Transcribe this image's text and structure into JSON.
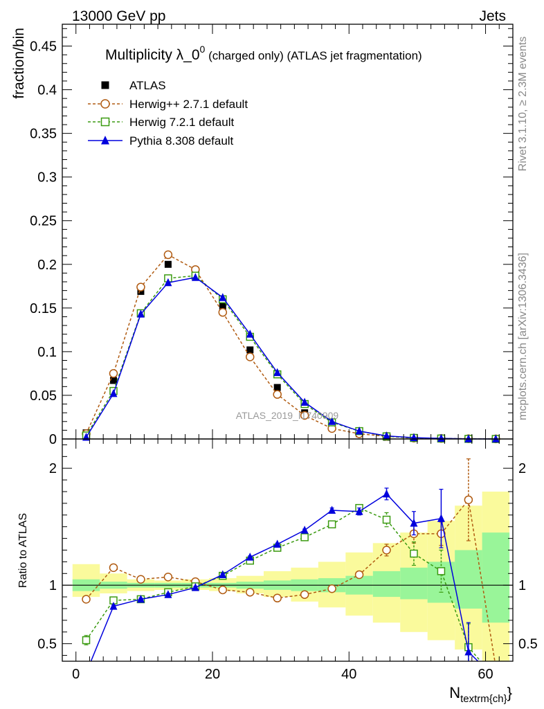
{
  "header": {
    "energy": "13000 GeV pp",
    "process": "Jets"
  },
  "side": {
    "rivet": "Rivet 3.1.10, ≥ 2.3M events",
    "mcplots": "mcplots.cern.ch [arXiv:1306.3436]"
  },
  "watermark": "ATLAS_2019_I1740909",
  "colors": {
    "atlas": "#000000",
    "herwigpp": "#b05a10",
    "herwig7": "#3a9a10",
    "pythia": "#0000dd",
    "band_inner": "#99f599",
    "band_outer": "#fafa9c"
  },
  "chart_data": [
    {
      "type": "scatter",
      "title_main": "Multiplicity λ_0",
      "title_sup": "0",
      "title_rest": " (charged only) (ATLAS jet fragmentation)",
      "ylabel": "fraction/bin",
      "xlim": [
        -2,
        64
      ],
      "ylim": [
        0,
        0.475
      ],
      "y_ticks": [
        "0",
        "0.05",
        "0.1",
        "0.15",
        "0.2",
        "0.25",
        "0.3",
        "0.35",
        "0.4",
        "0.45"
      ],
      "x": [
        1.5,
        5.5,
        9.5,
        13.5,
        17.5,
        21.5,
        25.5,
        29.5,
        33.5,
        37.5,
        41.5,
        45.5,
        49.5,
        53.5,
        57.5,
        61.5
      ],
      "series": [
        {
          "name": "ATLAS",
          "marker": "filled-square",
          "line": "none",
          "values": [
            0.007,
            0.067,
            0.169,
            0.2,
            0.189,
            0.152,
            0.102,
            0.059,
            0.03,
            0.013,
            0.006,
            0.002,
            0.001,
            0.0005,
            0.0002,
            0.0001
          ]
        },
        {
          "name": "Herwig++ 2.7.1 default",
          "marker": "open-circle",
          "line": "dashed",
          "values": [
            0.006,
            0.075,
            0.174,
            0.211,
            0.194,
            0.145,
            0.094,
            0.051,
            0.027,
            0.012,
            0.006,
            0.003,
            0.001,
            0.0006,
            0.0003,
            0.0001
          ]
        },
        {
          "name": "Herwig 7.2.1 default",
          "marker": "open-square",
          "line": "dashed",
          "values": [
            0.004,
            0.055,
            0.144,
            0.184,
            0.187,
            0.16,
            0.117,
            0.074,
            0.04,
            0.019,
            0.009,
            0.003,
            0.0012,
            0.0005,
            0.0001,
            0.0
          ]
        },
        {
          "name": "Pythia 8.308 default",
          "marker": "filled-triangle",
          "line": "solid",
          "values": [
            0.002,
            0.052,
            0.143,
            0.179,
            0.185,
            0.162,
            0.12,
            0.076,
            0.042,
            0.02,
            0.009,
            0.0035,
            0.0015,
            0.0007,
            0.0001,
            0.0
          ]
        }
      ]
    },
    {
      "type": "line",
      "ylabel": "Ratio to ATLAS",
      "xlabel": "N",
      "xlabel_sub": "textrm{ch}",
      "xlabel_close": "}",
      "xlim": [
        -2,
        64
      ],
      "ylim": [
        0.35,
        2.25
      ],
      "y_ticks": [
        "0.5",
        "1",
        "2"
      ],
      "x_ticks": [
        "0",
        "20",
        "40",
        "60"
      ],
      "x_tick_values": [
        0,
        20,
        40,
        60
      ],
      "reference": 1,
      "bins_edges": [
        -0.5,
        3.5,
        7.5,
        11.5,
        15.5,
        19.5,
        23.5,
        27.5,
        31.5,
        35.5,
        39.5,
        43.5,
        47.5,
        51.5,
        55.5,
        59.5,
        63.5
      ],
      "band_inner": [
        [
          0.95,
          1.05
        ],
        [
          0.97,
          1.03
        ],
        [
          0.98,
          1.02
        ],
        [
          0.98,
          1.02
        ],
        [
          0.98,
          1.02
        ],
        [
          0.98,
          1.02
        ],
        [
          0.97,
          1.03
        ],
        [
          0.96,
          1.04
        ],
        [
          0.95,
          1.05
        ],
        [
          0.94,
          1.06
        ],
        [
          0.92,
          1.08
        ],
        [
          0.9,
          1.12
        ],
        [
          0.88,
          1.15
        ],
        [
          0.85,
          1.2
        ],
        [
          0.8,
          1.3
        ],
        [
          0.68,
          1.45
        ]
      ],
      "band_outer": [
        [
          0.9,
          1.18
        ],
        [
          0.93,
          1.1
        ],
        [
          0.95,
          1.05
        ],
        [
          0.96,
          1.04
        ],
        [
          0.96,
          1.05
        ],
        [
          0.95,
          1.06
        ],
        [
          0.93,
          1.08
        ],
        [
          0.9,
          1.12
        ],
        [
          0.86,
          1.15
        ],
        [
          0.81,
          1.2
        ],
        [
          0.74,
          1.28
        ],
        [
          0.68,
          1.36
        ],
        [
          0.6,
          1.45
        ],
        [
          0.53,
          1.55
        ],
        [
          0.45,
          1.68
        ],
        [
          0.35,
          1.8
        ]
      ],
      "x": [
        1.5,
        5.5,
        9.5,
        13.5,
        17.5,
        21.5,
        25.5,
        29.5,
        33.5,
        37.5,
        41.5,
        45.5,
        49.5,
        53.5,
        57.5,
        61.5
      ],
      "series": [
        {
          "name": "Herwig++ 2.7.1 default",
          "marker": "open-circle",
          "line": "dashed",
          "values": [
            0.88,
            1.15,
            1.05,
            1.07,
            1.03,
            0.96,
            0.94,
            0.89,
            0.92,
            0.97,
            1.09,
            1.3,
            1.44,
            1.44,
            1.73,
            0.3
          ],
          "errors": [
            0.02,
            0.01,
            0.01,
            0.01,
            0.01,
            0.01,
            0.01,
            0.01,
            0.01,
            0.01,
            0.03,
            0.05,
            0.08,
            0.1,
            0.35,
            0.0
          ]
        },
        {
          "name": "Herwig 7.2.1 default",
          "marker": "open-square",
          "line": "dashed",
          "values": [
            0.53,
            0.87,
            0.88,
            0.94,
            0.99,
            1.08,
            1.21,
            1.32,
            1.41,
            1.52,
            1.66,
            1.56,
            1.27,
            1.12,
            0.47,
            0.2
          ],
          "errors": [
            0.04,
            0.01,
            0.01,
            0.01,
            0.01,
            0.01,
            0.01,
            0.01,
            0.01,
            0.02,
            0.03,
            0.06,
            0.1,
            0.18,
            0.2,
            0.0
          ]
        },
        {
          "name": "Pythia 8.308 default",
          "marker": "filled-triangle",
          "line": "solid",
          "values": [
            0.25,
            0.82,
            0.88,
            0.92,
            0.98,
            1.09,
            1.24,
            1.35,
            1.47,
            1.64,
            1.63,
            1.78,
            1.53,
            1.57,
            0.43,
            0.2
          ],
          "errors": [
            0.0,
            0.01,
            0.01,
            0.01,
            0.01,
            0.01,
            0.01,
            0.01,
            0.01,
            0.02,
            0.03,
            0.05,
            0.1,
            0.25,
            0.25,
            0.0
          ]
        }
      ]
    }
  ]
}
